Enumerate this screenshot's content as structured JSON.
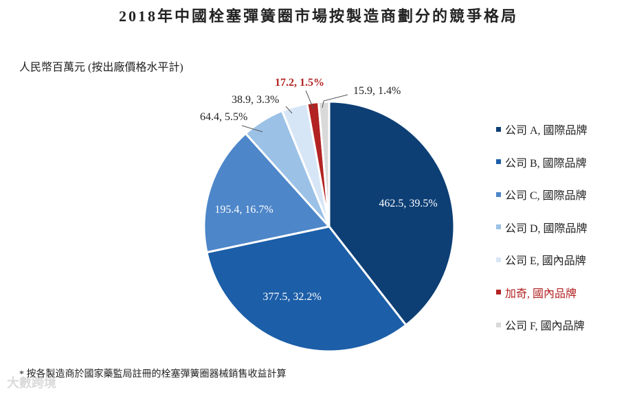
{
  "title": "2018年中國栓塞彈簧圈市場按製造商劃分的競爭格局",
  "unit_label": "人民幣百萬元 (按出廠價格水平計)",
  "footnote": "* 按各製造商於國家藥監局註冊的栓塞彈簧圈器械銷售收益計算",
  "watermark": "大數跨境",
  "colors": {
    "highlight_text": "#b22222",
    "text": "#222222",
    "inside_label": "#ffffff"
  },
  "chart_data": {
    "type": "pie",
    "legend_position": "right",
    "slices": [
      {
        "name": "公司 A, 國際品牌",
        "value": 462.5,
        "percent": 39.5,
        "label": "462.5, 39.5%",
        "color": "#0d3f75",
        "highlight": false
      },
      {
        "name": "公司 B, 國際品牌",
        "value": 377.5,
        "percent": 32.2,
        "label": "377.5, 32.2%",
        "color": "#1c5ea8",
        "highlight": false
      },
      {
        "name": "公司 C, 國際品牌",
        "value": 195.4,
        "percent": 16.7,
        "label": "195.4, 16.7%",
        "color": "#4d86c9",
        "highlight": false
      },
      {
        "name": "公司 D, 國際品牌",
        "value": 64.4,
        "percent": 5.5,
        "label": "64.4, 5.5%",
        "color": "#9bc1e6",
        "highlight": false
      },
      {
        "name": "公司 E, 國內品牌",
        "value": 38.9,
        "percent": 3.3,
        "label": "38.9, 3.3%",
        "color": "#d7e6f6",
        "highlight": false
      },
      {
        "name": "加奇, 國內品牌",
        "value": 17.2,
        "percent": 1.5,
        "label": "17.2, 1.5%",
        "color": "#b22222",
        "highlight": true
      },
      {
        "name": "公司 F, 國內品牌",
        "value": 15.9,
        "percent": 1.4,
        "label": "15.9, 1.4%",
        "color": "#d9d9d9",
        "highlight": false
      }
    ]
  }
}
